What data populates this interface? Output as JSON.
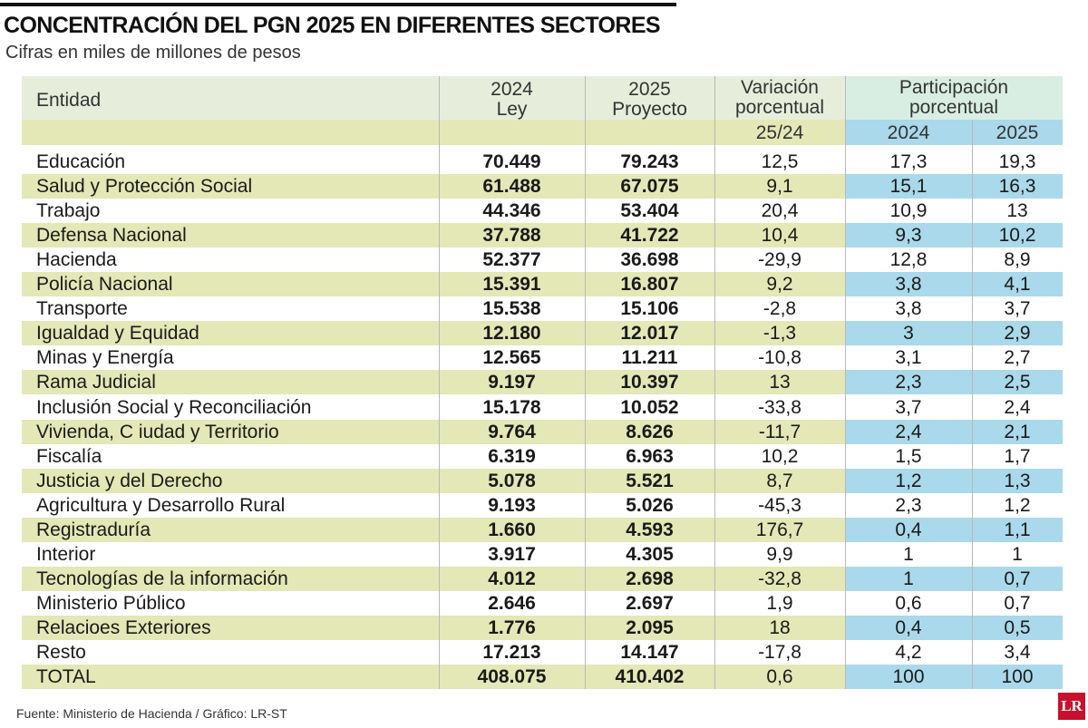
{
  "title": "CONCENTRACIÓN DEL PGN 2025 EN DIFERENTES SECTORES",
  "subtitle": "Cifras en miles de millones de pesos",
  "table": {
    "header": {
      "entity": "Entidad",
      "ley": [
        "2024",
        "Ley"
      ],
      "proyecto": [
        "2025",
        "Proyecto"
      ],
      "variacion": [
        "Variación",
        "porcentual",
        "25/24"
      ],
      "participacion": [
        "Participación",
        "porcentual"
      ],
      "part_years": [
        "2024",
        "2025"
      ]
    },
    "rows": [
      [
        "Educación",
        "70.449",
        "79.243",
        "12,5",
        "17,3",
        "19,3"
      ],
      [
        "Salud y Protección Social",
        "61.488",
        "67.075",
        "9,1",
        "15,1",
        "16,3"
      ],
      [
        "Trabajo",
        "44.346",
        "53.404",
        "20,4",
        "10,9",
        "13"
      ],
      [
        "Defensa Nacional",
        "37.788",
        "41.722",
        "10,4",
        "9,3",
        "10,2"
      ],
      [
        "Hacienda",
        "52.377",
        "36.698",
        "-29,9",
        "12,8",
        "8,9"
      ],
      [
        "Policía Nacional",
        "15.391",
        "16.807",
        "9,2",
        "3,8",
        "4,1"
      ],
      [
        "Transporte",
        "15.538",
        "15.106",
        "-2,8",
        "3,8",
        "3,7"
      ],
      [
        "Igualdad y Equidad",
        "12.180",
        "12.017",
        "-1,3",
        "3",
        "2,9"
      ],
      [
        "Minas y Energía",
        "12.565",
        "11.211",
        "-10,8",
        "3,1",
        "2,7"
      ],
      [
        "Rama Judicial",
        "9.197",
        "10.397",
        "13",
        "2,3",
        "2,5"
      ],
      [
        "Inclusión Social y Reconciliación",
        "15.178",
        "10.052",
        "-33,8",
        "3,7",
        "2,4"
      ],
      [
        "Vivienda, C iudad y Territorio",
        "9.764",
        "8.626",
        "-11,7",
        "2,4",
        "2,1"
      ],
      [
        "Fiscalía",
        "6.319",
        "6.963",
        "10,2",
        "1,5",
        "1,7"
      ],
      [
        "Justicia y del Derecho",
        "5.078",
        "5.521",
        "8,7",
        "1,2",
        "1,3"
      ],
      [
        "Agricultura y Desarrollo Rural",
        "9.193",
        "5.026",
        "-45,3",
        "2,3",
        "1,2"
      ],
      [
        "Registraduría",
        "1.660",
        "4.593",
        "176,7",
        "0,4",
        "1,1"
      ],
      [
        "Interior",
        "3.917",
        "4.305",
        "9,9",
        "1",
        "1"
      ],
      [
        "Tecnologías de la información",
        "4.012",
        "2.698",
        "-32,8",
        "1",
        "0,7"
      ],
      [
        "Ministerio Público",
        "2.646",
        "2.697",
        "1,9",
        "0,6",
        "0,7"
      ],
      [
        "Relacioes Exteriores",
        "1.776",
        "2.095",
        "18",
        "0,4",
        "0,5"
      ],
      [
        "Resto",
        "17.213",
        "14.147",
        "-17,8",
        "4,2",
        "3,4"
      ],
      [
        "TOTAL",
        "408.075",
        "410.402",
        "0,6",
        "100",
        "100"
      ]
    ]
  },
  "footer": "Fuente: Ministerio de Hacienda / Gráfico: LR-ST",
  "logo": "LR"
}
